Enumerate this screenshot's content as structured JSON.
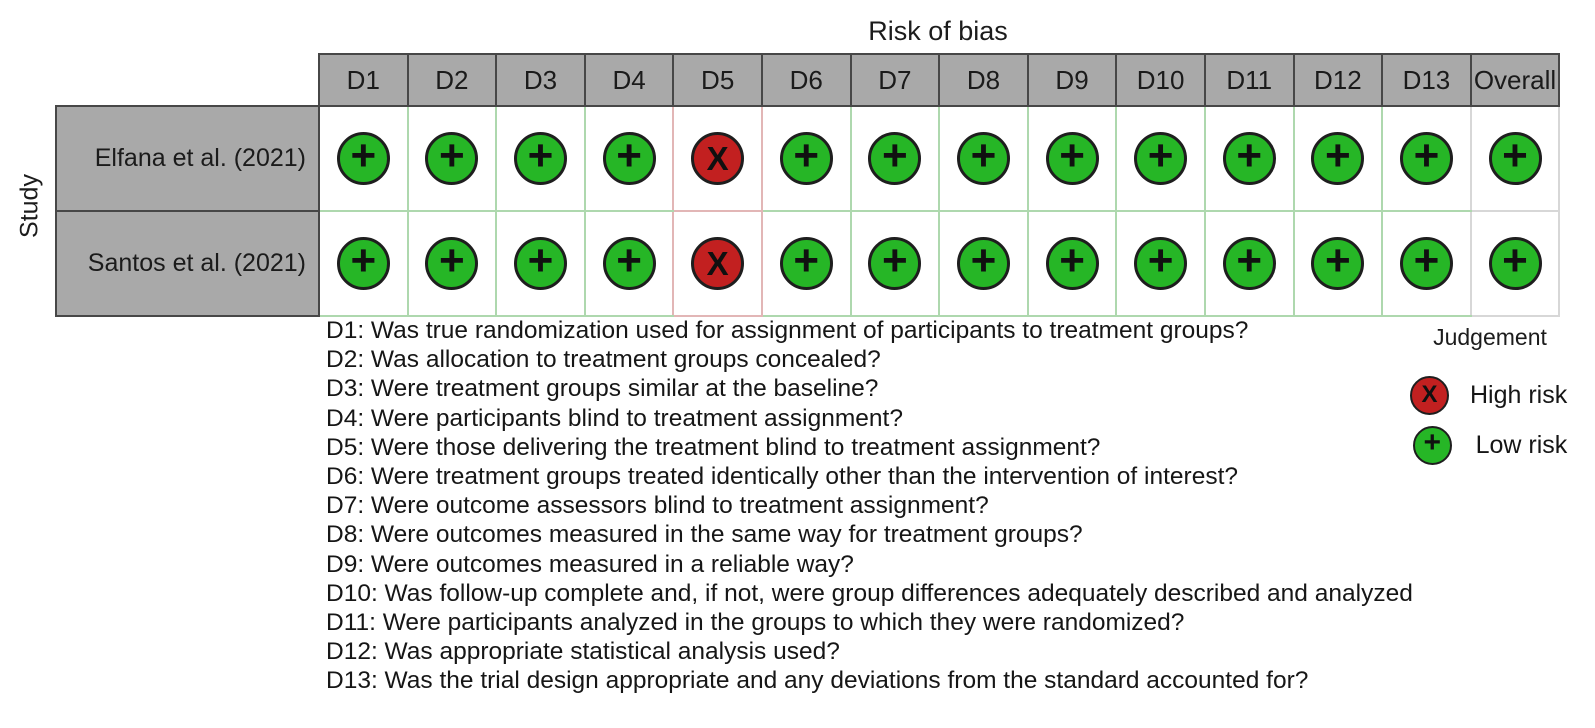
{
  "chart_data": {
    "type": "table",
    "title": "Risk of bias",
    "ylabel": "Study",
    "columns": [
      "D1",
      "D2",
      "D3",
      "D4",
      "D5",
      "D6",
      "D7",
      "D8",
      "D9",
      "D10",
      "D11",
      "D12",
      "D13",
      "Overall"
    ],
    "rows": [
      {
        "study": "Elfana et al. (2021)",
        "judgements": [
          "+",
          "+",
          "+",
          "+",
          "X",
          "+",
          "+",
          "+",
          "+",
          "+",
          "+",
          "+",
          "+",
          "+"
        ]
      },
      {
        "study": "Santos et al. (2021)",
        "judgements": [
          "+",
          "+",
          "+",
          "+",
          "X",
          "+",
          "+",
          "+",
          "+",
          "+",
          "+",
          "+",
          "+",
          "+"
        ]
      }
    ],
    "questions": [
      "D1: Was true randomization used for assignment of participants to treatment groups?",
      "D2: Was allocation to treatment groups concealed?",
      "D3: Were treatment groups similar at the baseline?",
      "D4: Were participants blind to treatment assignment?",
      "D5: Were those delivering the treatment blind to treatment assignment?",
      "D6: Were treatment groups treated identically other than the intervention of interest?",
      "D7: Were outcome assessors blind to treatment assignment?",
      "D8: Were outcomes measured in the same way for treatment groups?",
      "D9: Were outcomes measured in a reliable way?",
      "D10: Was follow-up complete and, if not, were group differences adequately described and analyzed",
      "D11: Were participants analyzed in the groups to which they were randomized?",
      "D12: Was appropriate statistical analysis used?",
      "D13: Was the trial design appropriate and any deviations from the standard accounted for?"
    ],
    "legend": {
      "title": "Judgement",
      "items": [
        {
          "symbol": "X",
          "label": "High risk",
          "color": "#c22020"
        },
        {
          "symbol": "+",
          "label": "Low risk",
          "color": "#26b626"
        }
      ]
    },
    "colors": {
      "low_risk": "#26b626",
      "high_risk": "#c22020",
      "header_bg": "#a9a9a9",
      "header_border": "#474747",
      "cell_border_low": "#aed8ae",
      "cell_border_high": "#e2b6b6",
      "cell_border_overall": "#d7d7d7"
    }
  }
}
